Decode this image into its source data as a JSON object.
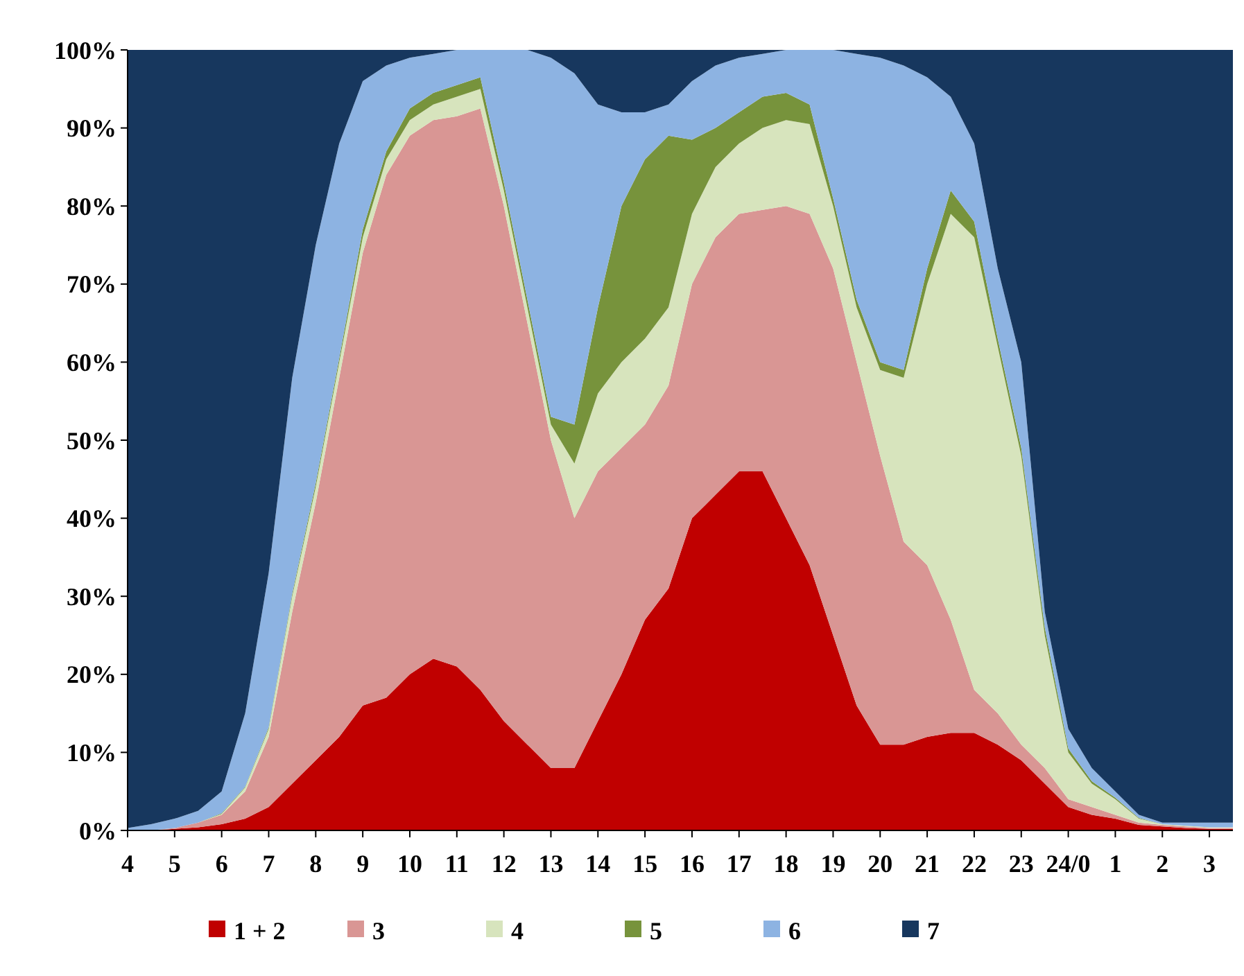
{
  "chart_data": {
    "type": "area",
    "stacked": true,
    "legend": "bottom",
    "grid": false,
    "categories": [
      "4",
      null,
      "5",
      null,
      "6",
      null,
      "7",
      null,
      "8",
      null,
      "9",
      null,
      "10",
      null,
      "11",
      null,
      "12",
      null,
      "13",
      null,
      "14",
      null,
      "15",
      null,
      "16",
      null,
      "17",
      null,
      "18",
      null,
      "19",
      null,
      "20",
      null,
      "21",
      null,
      "22",
      null,
      "23",
      null,
      "24/0",
      null,
      "1",
      null,
      "2",
      null,
      "3",
      null
    ],
    "ylim": [
      0,
      100
    ],
    "yticks": [
      {
        "value": 0,
        "label": "0%"
      },
      {
        "value": 10,
        "label": "10%"
      },
      {
        "value": 20,
        "label": "20%"
      },
      {
        "value": 30,
        "label": "30%"
      },
      {
        "value": 40,
        "label": "40%"
      },
      {
        "value": 50,
        "label": "50%"
      },
      {
        "value": 60,
        "label": "60%"
      },
      {
        "value": 70,
        "label": "70%"
      },
      {
        "value": 80,
        "label": "80%"
      },
      {
        "value": 90,
        "label": "90%"
      },
      {
        "value": 100,
        "label": "100%"
      }
    ],
    "series": [
      {
        "name": "1 + 2",
        "color": "#c00000",
        "values": [
          0,
          0,
          0.2,
          0.4,
          0.8,
          1.5,
          3,
          6,
          9,
          12,
          16,
          17,
          20,
          22,
          21,
          18,
          14,
          11,
          8,
          8,
          14,
          20,
          27,
          31,
          40,
          43,
          46,
          46,
          40,
          34,
          25,
          16,
          11,
          11,
          12,
          12.5,
          12.5,
          11,
          9,
          6,
          3,
          2,
          1.5,
          0.7,
          0.5,
          0.3,
          0.2,
          0.2
        ]
      },
      {
        "name": "3",
        "color": "#d99694",
        "values": [
          0,
          0,
          0.1,
          0.6,
          1.2,
          3.5,
          9,
          22,
          33,
          46,
          58,
          67,
          69,
          69,
          70.5,
          74.5,
          66,
          54,
          42,
          32,
          32,
          29,
          25,
          26,
          30,
          33,
          33,
          33.5,
          40,
          45,
          47,
          44,
          37,
          26,
          22,
          14.5,
          5.5,
          4,
          2,
          2,
          1,
          1,
          0.5,
          0.3,
          0.2,
          0.2,
          0.1,
          0.1
        ]
      },
      {
        "name": "4",
        "color": "#d7e4bd",
        "values": [
          0,
          0,
          0,
          0,
          0.1,
          0.5,
          1,
          2,
          2,
          2,
          2,
          2,
          2,
          2,
          2.5,
          2.5,
          2,
          2,
          2,
          7,
          10,
          11,
          11,
          10,
          9,
          9,
          9,
          10.5,
          11,
          11.5,
          8,
          7,
          11,
          21,
          36,
          52,
          58,
          47,
          37,
          17,
          6,
          3,
          2,
          0.5,
          0.1,
          0.1,
          0.1,
          0.1
        ]
      },
      {
        "name": "5",
        "color": "#77933c",
        "values": [
          0,
          0,
          0,
          0,
          0.1,
          0.1,
          0.2,
          0.3,
          0.5,
          0.5,
          1,
          1,
          1.5,
          1.5,
          1.5,
          1.5,
          1,
          1,
          1,
          5,
          11,
          20,
          23,
          22,
          9.5,
          5,
          4,
          4,
          3.5,
          2.5,
          1,
          1,
          1,
          1,
          2,
          3,
          2,
          1,
          1,
          1,
          0.5,
          0.3,
          0.2,
          0.1,
          0,
          0,
          0,
          0
        ]
      },
      {
        "name": "6",
        "color": "#8db3e2",
        "values": [
          0.3,
          0.8,
          1.2,
          1.5,
          2.8,
          9.4,
          19.8,
          27.7,
          30.5,
          27.5,
          19,
          11,
          6.5,
          5,
          4.5,
          3.5,
          17,
          32,
          46,
          45,
          26,
          12,
          6,
          4,
          7.5,
          8,
          7,
          5.5,
          5.5,
          7,
          19,
          31.5,
          39,
          39,
          24.5,
          12,
          10,
          9,
          11,
          2,
          2.5,
          1.7,
          0.8,
          0.4,
          0.2,
          0.4,
          0.6,
          0.6
        ]
      },
      {
        "name": "7",
        "color": "#17375e",
        "values": [
          99.7,
          99.2,
          98.5,
          97.5,
          95,
          85,
          67,
          42,
          25,
          12,
          4,
          2,
          1,
          0.5,
          0,
          0,
          0,
          0,
          1,
          3,
          7,
          8,
          8,
          7,
          4,
          2,
          1,
          0.5,
          0,
          0,
          0,
          0.5,
          1,
          2,
          3.5,
          6,
          12,
          28,
          40,
          72,
          87,
          92,
          95,
          98,
          99,
          99,
          99,
          99
        ]
      }
    ]
  }
}
